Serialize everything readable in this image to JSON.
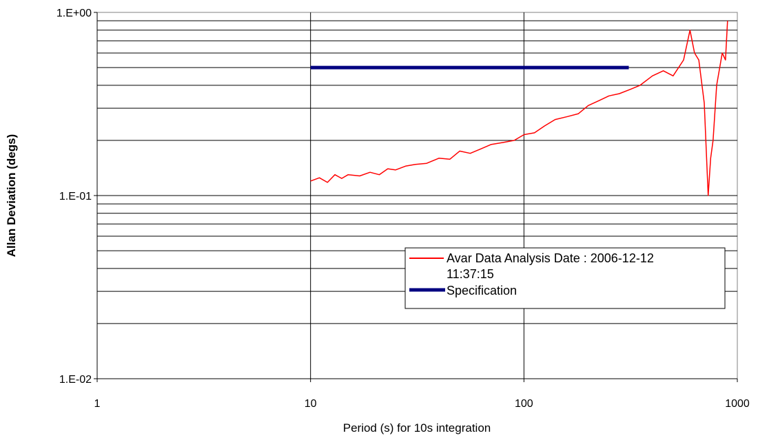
{
  "chart_data": {
    "type": "line",
    "title": "",
    "xlabel": "Period (s) for 10s integration",
    "ylabel": "Allan Deviation (degs)",
    "x_scale": "log",
    "y_scale": "log",
    "xlim": [
      1,
      1000
    ],
    "ylim": [
      0.01,
      1
    ],
    "grid": true,
    "legend_position": "bottom-right",
    "x_ticks": [
      "1",
      "10",
      "100",
      "1000"
    ],
    "y_ticks": [
      "1.E-02",
      "1.E-01",
      "1.E+00"
    ],
    "series": [
      {
        "name": "Avar Data Analysis Date : 2006-12-12 11:37:15",
        "color": "#ff0000",
        "x": [
          10,
          11,
          12,
          13,
          14,
          15,
          17,
          19,
          21,
          23,
          25,
          28,
          31,
          35,
          40,
          45,
          50,
          56,
          63,
          70,
          80,
          90,
          100,
          112,
          125,
          140,
          160,
          180,
          200,
          225,
          250,
          280,
          315,
          350,
          400,
          450,
          500,
          560,
          600,
          630,
          660,
          700,
          730,
          750,
          770,
          800,
          850,
          880,
          900
        ],
        "y": [
          0.12,
          0.125,
          0.118,
          0.13,
          0.124,
          0.13,
          0.128,
          0.134,
          0.13,
          0.14,
          0.138,
          0.145,
          0.148,
          0.15,
          0.16,
          0.158,
          0.175,
          0.17,
          0.18,
          0.19,
          0.195,
          0.2,
          0.215,
          0.22,
          0.24,
          0.26,
          0.27,
          0.28,
          0.31,
          0.33,
          0.35,
          0.36,
          0.38,
          0.4,
          0.45,
          0.48,
          0.45,
          0.55,
          0.8,
          0.6,
          0.55,
          0.32,
          0.1,
          0.16,
          0.2,
          0.4,
          0.6,
          0.55,
          0.9
        ]
      },
      {
        "name": "Specification",
        "color": "#000080",
        "x": [
          10,
          310
        ],
        "y": [
          0.5,
          0.5
        ]
      }
    ]
  }
}
